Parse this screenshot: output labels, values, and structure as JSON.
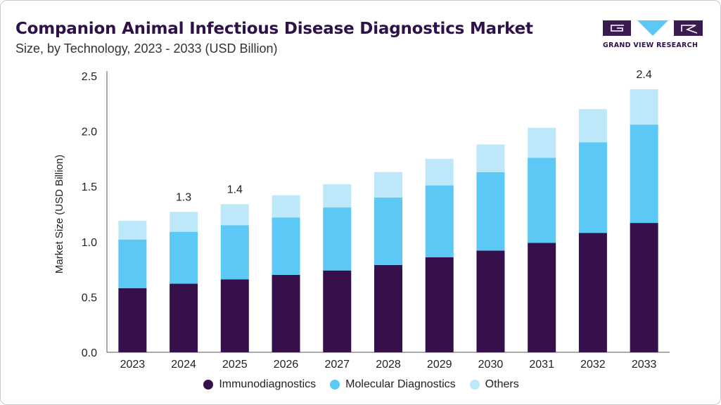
{
  "header": {
    "title": "Companion Animal Infectious Disease Diagnostics Market",
    "subtitle": "Size, by Technology, 2023 - 2033 (USD Billion)"
  },
  "logo": {
    "text": "GRAND VIEW RESEARCH",
    "colors": {
      "dark": "#3a1a4f",
      "accent": "#5bc8f5"
    }
  },
  "chart_data": {
    "type": "bar",
    "stacked": true,
    "categories": [
      "2023",
      "2024",
      "2025",
      "2026",
      "2027",
      "2028",
      "2029",
      "2030",
      "2031",
      "2032",
      "2033"
    ],
    "series": [
      {
        "name": "Immunodiagnostics",
        "color": "#36104a",
        "values": [
          0.58,
          0.62,
          0.66,
          0.7,
          0.74,
          0.79,
          0.86,
          0.92,
          0.99,
          1.08,
          1.17
        ]
      },
      {
        "name": "Molecular Diagnostics",
        "color": "#5bc8f5",
        "values": [
          0.44,
          0.47,
          0.49,
          0.52,
          0.57,
          0.61,
          0.65,
          0.71,
          0.77,
          0.82,
          0.89
        ]
      },
      {
        "name": "Others",
        "color": "#bde8f9",
        "values": [
          0.17,
          0.18,
          0.19,
          0.2,
          0.21,
          0.23,
          0.24,
          0.25,
          0.27,
          0.3,
          0.32
        ]
      }
    ],
    "data_labels": [
      {
        "category": "2024",
        "text": "1.3"
      },
      {
        "category": "2025",
        "text": "1.4"
      },
      {
        "category": "2033",
        "text": "2.4"
      }
    ],
    "ylabel": "Market Size (USD Billion)",
    "xlabel": "",
    "ylim": [
      0,
      2.5
    ],
    "yticks": [
      "0.0",
      "0.5",
      "1.0",
      "1.5",
      "2.0",
      "2.5"
    ],
    "grid": false,
    "legend_position": "bottom"
  }
}
